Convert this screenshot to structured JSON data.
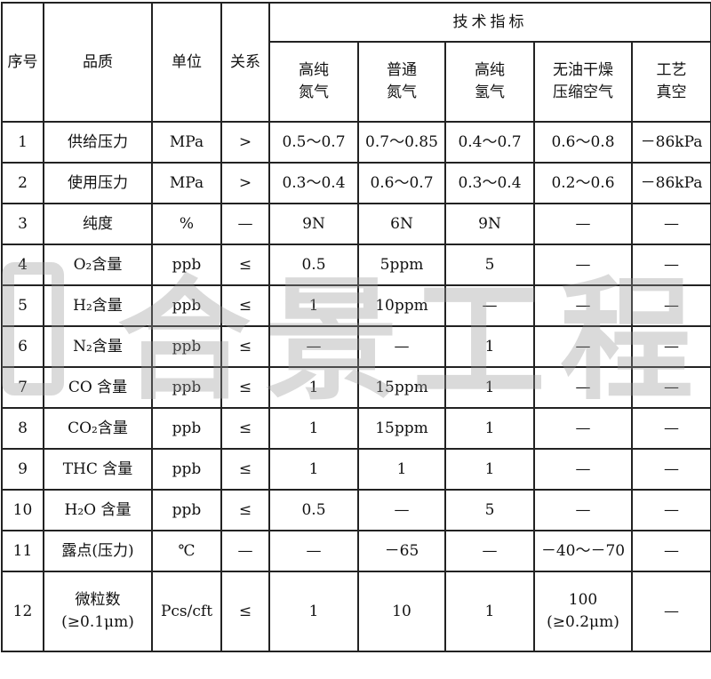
{
  "header": {
    "no": "序号",
    "item": "品质",
    "unit": "单位",
    "relation": "关系",
    "group": "技术指标",
    "columns": [
      [
        "高纯",
        "氮气"
      ],
      [
        "普通",
        "氮气"
      ],
      [
        "高纯",
        "氢气"
      ],
      [
        "无油干燥",
        "压缩空气"
      ],
      [
        "工艺",
        "真空"
      ]
    ]
  },
  "rows": [
    {
      "no": "1",
      "item": "供给压力",
      "unit": "MPa",
      "rel": ">",
      "v": [
        "0.5～0.7",
        "0.7～0.85",
        "0.4～0.7",
        "0.6～0.8",
        "－86kPa"
      ]
    },
    {
      "no": "2",
      "item": "使用压力",
      "unit": "MPa",
      "rel": ">",
      "v": [
        "0.3～0.4",
        "0.6～0.7",
        "0.3～0.4",
        "0.2～0.6",
        "－86kPa"
      ]
    },
    {
      "no": "3",
      "item": "纯度",
      "unit": "%",
      "rel": "—",
      "v": [
        "9N",
        "6N",
        "9N",
        "—",
        "—"
      ]
    },
    {
      "no": "4",
      "item": "O₂含量",
      "unit": "ppb",
      "rel": "≤",
      "v": [
        "0.5",
        "5ppm",
        "5",
        "—",
        "—"
      ]
    },
    {
      "no": "5",
      "item": "H₂含量",
      "unit": "ppb",
      "rel": "≤",
      "v": [
        "1",
        "10ppm",
        "—",
        "—",
        "—"
      ]
    },
    {
      "no": "6",
      "item": "N₂含量",
      "unit": "ppb",
      "rel": "≤",
      "v": [
        "—",
        "—",
        "1",
        "—",
        "—"
      ]
    },
    {
      "no": "7",
      "item": "CO 含量",
      "unit": "ppb",
      "rel": "≤",
      "v": [
        "1",
        "15ppm",
        "1",
        "—",
        "—"
      ]
    },
    {
      "no": "8",
      "item": "CO₂含量",
      "unit": "ppb",
      "rel": "≤",
      "v": [
        "1",
        "15ppm",
        "1",
        "—",
        "—"
      ]
    },
    {
      "no": "9",
      "item": "THC 含量",
      "unit": "ppb",
      "rel": "≤",
      "v": [
        "1",
        "1",
        "1",
        "—",
        "—"
      ]
    },
    {
      "no": "10",
      "item": "H₂O 含量",
      "unit": "ppb",
      "rel": "≤",
      "v": [
        "0.5",
        "—",
        "5",
        "—",
        "—"
      ]
    },
    {
      "no": "11",
      "item": "露点(压力)",
      "unit": "℃",
      "rel": "—",
      "v": [
        "—",
        "－65",
        "—",
        "－40～－70",
        "—"
      ]
    }
  ],
  "row12": {
    "no": "12",
    "item": [
      "微粒数",
      "(≥0.1μm)"
    ],
    "unit": "Pcs/cft",
    "rel": "≤",
    "v": [
      "1",
      "10",
      "1",
      [
        "100",
        "(≥0.2μm)"
      ],
      "—"
    ]
  },
  "watermark": "合景工程"
}
